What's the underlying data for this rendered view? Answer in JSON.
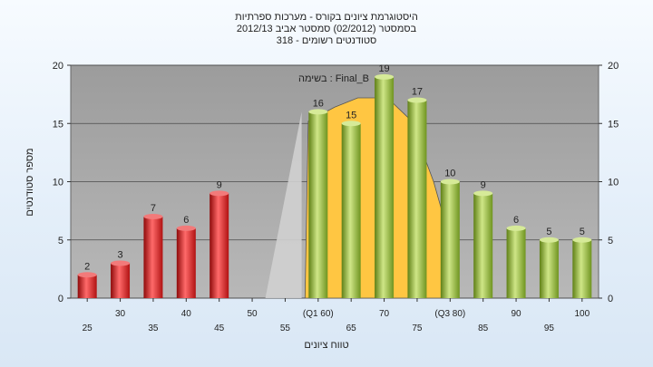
{
  "chart_data": {
    "type": "bar",
    "title_lines": [
      "היסטוגרמת ציונים בקורס - מערכות ספרתיות",
      "בסמסטר  (02/2012)  סמסטר אביב 2012/13",
      "סטודנטים רשומים - 318"
    ],
    "annotation": "בשימה : Final_B",
    "xlabel": "טווח ציונים",
    "ylabel": "מספר סטודנטים",
    "ylim": [
      0,
      20
    ],
    "yticks": [
      0,
      5,
      10,
      15,
      20
    ],
    "grid": true,
    "colors": {
      "fail": "#dd2222",
      "pass": "#8fb832",
      "curve_fill": "#ffc642",
      "lower_area": "#d0d0d0",
      "plot_bg": "#a9a9a9"
    },
    "bars": [
      {
        "x": "25",
        "value": 2,
        "group": "fail"
      },
      {
        "x": "30",
        "value": 3,
        "group": "fail"
      },
      {
        "x": "35",
        "value": 7,
        "group": "fail"
      },
      {
        "x": "40",
        "value": 6,
        "group": "fail"
      },
      {
        "x": "45",
        "value": 9,
        "group": "fail"
      },
      {
        "x": "50",
        "value": 0,
        "group": "fail"
      },
      {
        "x": "55",
        "value": 0,
        "group": "fail"
      },
      {
        "x": "(Q1 60)",
        "value": 16,
        "group": "pass"
      },
      {
        "x": "65",
        "value": 15,
        "group": "pass"
      },
      {
        "x": "70",
        "value": 19,
        "group": "pass"
      },
      {
        "x": "75",
        "value": 17,
        "group": "pass"
      },
      {
        "x": "(Q3 80)",
        "value": 10,
        "group": "pass"
      },
      {
        "x": "85",
        "value": 9,
        "group": "pass"
      },
      {
        "x": "90",
        "value": 6,
        "group": "pass"
      },
      {
        "x": "95",
        "value": 5,
        "group": "pass"
      },
      {
        "x": "100",
        "value": 5,
        "group": "pass"
      }
    ],
    "lower_area": [
      {
        "i": 5.9,
        "y": 0
      },
      {
        "i": 7.0,
        "y": 16
      },
      {
        "i": 7.0,
        "y": 0
      }
    ],
    "curve_area": [
      {
        "i": 7.1,
        "y": 0
      },
      {
        "i": 7.2,
        "y": 15.2
      },
      {
        "i": 8.0,
        "y": 16.4
      },
      {
        "i": 8.7,
        "y": 17.2
      },
      {
        "i": 9.6,
        "y": 17.2
      },
      {
        "i": 10.3,
        "y": 15.3
      },
      {
        "i": 11.0,
        "y": 10
      },
      {
        "i": 11.7,
        "y": 3
      },
      {
        "i": 11.7,
        "y": 0
      }
    ]
  }
}
